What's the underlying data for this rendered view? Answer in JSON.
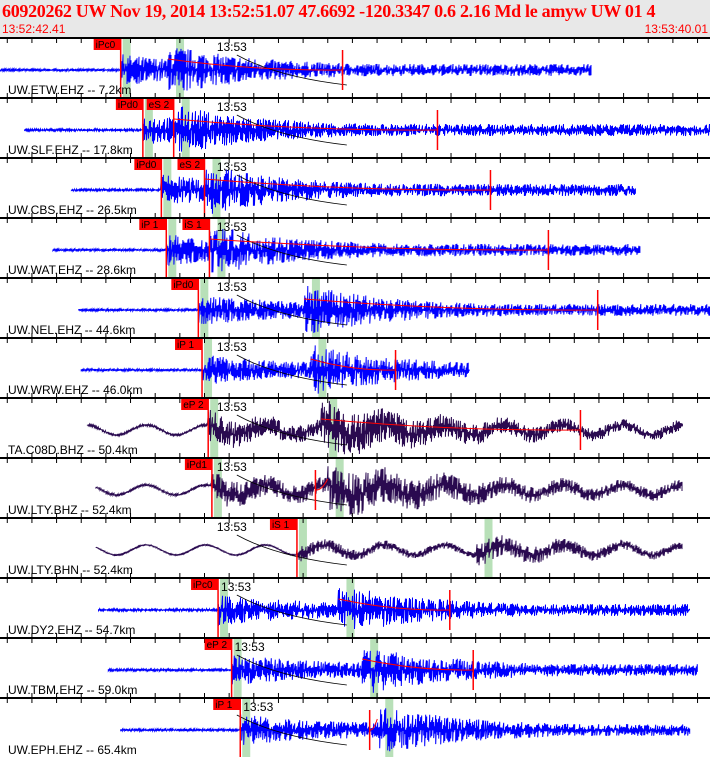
{
  "header": {
    "title": "60920262 UW Nov 19, 2014 13:52:51.07    47.6692 -120.3347  0.6 2.16 Md le amyw UW 01    4",
    "start_time": "13:52:42.41",
    "end_time": "13:53:40.01"
  },
  "chart_data": {
    "type": "line",
    "title": "60920262 UW Nov 19, 2014 13:52:51.07",
    "x_range": [
      "13:52:42.41",
      "13:53:40.01"
    ],
    "minute_label": "13:53",
    "colors": {
      "short_period": "#0000ff",
      "broadband": "#2a0a50",
      "pick": "#ff0000",
      "theoretical_band": "#b8e0b8"
    },
    "traces": [
      {
        "label": "UW.ETW.EHZ -- 7.2km",
        "color": "#0000ff",
        "start": "13:52:42.41",
        "end": "13:53:30.4",
        "coda": "13:53:10.2",
        "picks": [
          {
            "label": "iPc0",
            "time": "13:52:52.2"
          }
        ]
      },
      {
        "label": "UW.SLF.EHZ -- 17.8km",
        "color": "#0000ff",
        "start": "13:52:44.4",
        "end": "13:53:40.01",
        "coda": "13:53:17.9",
        "picks": [
          {
            "label": "iPd0",
            "time": "13:52:54.0"
          },
          {
            "label": "eS 2",
            "time": "13:52:56.5"
          }
        ]
      },
      {
        "label": "UW.CBS.EHZ -- 26.5km",
        "color": "#0000ff",
        "start": "13:52:48.2",
        "end": "13:53:34.0",
        "coda": "13:53:22.2",
        "picks": [
          {
            "label": "iPd0",
            "time": "13:52:55.5"
          },
          {
            "label": "eS 2",
            "time": "13:52:59.0"
          }
        ]
      },
      {
        "label": "UW.WAT.EHZ -- 28.6km",
        "color": "#0000ff",
        "start": "13:52:46.7",
        "end": "13:53:34.4",
        "coda": "13:53:26.9",
        "picks": [
          {
            "label": "iP 1",
            "time": "13:52:55.9"
          },
          {
            "label": "iS 1",
            "time": "13:52:59.4"
          }
        ]
      },
      {
        "label": "UW.NEL.EHZ -- 44.6km",
        "color": "#0000ff",
        "start": "13:52:48.8",
        "end": "13:53:40.01",
        "coda": "13:53:30.9",
        "picks": [
          {
            "label": "iPd0",
            "time": "13:52:58.5"
          }
        ]
      },
      {
        "label": "UW.WRW.EHZ -- 46.0km",
        "color": "#0000ff",
        "start": "13:52:49.0",
        "end": "13:53:20.5",
        "coda": "13:53:14.5",
        "picks": [
          {
            "label": "iP 1",
            "time": "13:52:58.8"
          }
        ]
      },
      {
        "label": "TA.C08D.BHZ -- 50.4km",
        "color": "#2a0a50",
        "start": "13:52:49.5",
        "end": "13:53:37.8",
        "coda": "13:53:29.5",
        "picks": [
          {
            "label": "eP 2",
            "time": "13:52:59.3"
          }
        ]
      },
      {
        "label": "UW.LTY.BHZ -- 52.4km",
        "color": "#2a0a50",
        "start": "13:52:50.2",
        "end": "13:53:37.8",
        "coda": "13:53:08.0",
        "picks": [
          {
            "label": "iPd1",
            "time": "13:52:59.6"
          }
        ]
      },
      {
        "label": "UW.LTY.BHN -- 52.4km",
        "color": "#2a0a50",
        "start": "13:52:50.2",
        "end": "13:53:37.8",
        "coda": "",
        "picks": [
          {
            "label": "iS 1",
            "time": "13:53:06.5"
          }
        ]
      },
      {
        "label": "UW.DY2.EHZ -- 54.7km",
        "color": "#0000ff",
        "start": "13:52:50.4",
        "end": "13:53:38.4",
        "coda": "13:53:18.9",
        "picks": [
          {
            "label": "iPc0",
            "time": "13:53:00.1"
          }
        ]
      },
      {
        "label": "UW.TBM.EHZ -- 59.0km",
        "color": "#0000ff",
        "start": "13:52:51.2",
        "end": "13:53:39.0",
        "coda": "13:53:20.8",
        "picks": [
          {
            "label": "eP 2",
            "time": "13:53:01.2"
          }
        ]
      },
      {
        "label": "UW.EPH.EHZ -- 65.4km",
        "color": "#0000ff",
        "start": "13:52:52.2",
        "end": "13:53:38.4",
        "coda": "13:53:12.4",
        "picks": [
          {
            "label": "iP 1",
            "time": "13:53:01.9"
          }
        ]
      }
    ]
  }
}
